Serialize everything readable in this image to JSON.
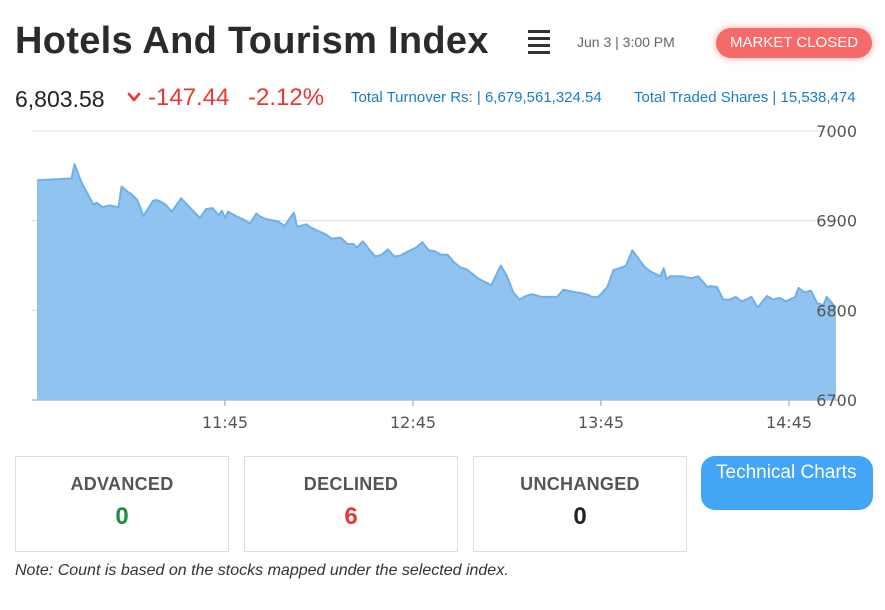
{
  "header": {
    "title": "Hotels And Tourism Index",
    "datetime": "Jun 3 | 3:00 PM",
    "market_status": "MARKET CLOSED"
  },
  "stats": {
    "index_value": "6,803.58",
    "change": "-147.44",
    "change_pct": "-2.12%",
    "turnover": "Total Turnover Rs: | 6,679,561,324.54",
    "traded_shares": "Total Traded Shares | 15,538,474"
  },
  "colors": {
    "area_fill": "#90c3ef",
    "line": "#6fb0e6",
    "down": "#e53935",
    "up": "#1e8e3e",
    "link": "#1a7dc4",
    "badge": "#f76a6a",
    "button": "#42a5f5"
  },
  "icons": {
    "menu": "hamburger-menu-icon",
    "change_direction": "chevron-down-icon"
  },
  "chart_data": {
    "type": "area",
    "x_ticks": [
      "11:45",
      "12:45",
      "13:45",
      "14:45"
    ],
    "y_ticks": [
      "7000",
      "6900",
      "6800",
      "6700"
    ],
    "ylim": [
      6700,
      7000
    ],
    "x_range_minutes": [
      645,
      900
    ],
    "y_axis_position": "right",
    "grid": true,
    "x": [
      645,
      656,
      657,
      659,
      663,
      664,
      666,
      668,
      671,
      672,
      674,
      675,
      677,
      679,
      682,
      683,
      684,
      686,
      688,
      691,
      697,
      699,
      701,
      703,
      704,
      705,
      706,
      708,
      711,
      713,
      715,
      716,
      718,
      722,
      724,
      727,
      728,
      731,
      732,
      735,
      737,
      739,
      742,
      744,
      746,
      747,
      749,
      751,
      753,
      755,
      757,
      759,
      761,
      763,
      766,
      768,
      770,
      772,
      774,
      776,
      778,
      780,
      782,
      786,
      790,
      793,
      795,
      797,
      799,
      801,
      803,
      806,
      809,
      811,
      813,
      817,
      819,
      821,
      822,
      824,
      825,
      827,
      829,
      831,
      833,
      835,
      839,
      841,
      844,
      845,
      846,
      847,
      851,
      852,
      854,
      856,
      859,
      860,
      862,
      864,
      866,
      868,
      870,
      873,
      875,
      877,
      878,
      880,
      882,
      884,
      887,
      888,
      890,
      892,
      894,
      896,
      897,
      900
    ],
    "y": [
      6945,
      6947,
      6963,
      6944,
      6918,
      6920,
      6915,
      6917,
      6915,
      6938,
      6932,
      6930,
      6923,
      6905,
      6922,
      6923,
      6922,
      6918,
      6910,
      6925,
      6903,
      6913,
      6914,
      6906,
      6911,
      6903,
      6910,
      6906,
      6901,
      6897,
      6908,
      6905,
      6902,
      6899,
      6894,
      6909,
      6893,
      6896,
      6893,
      6888,
      6885,
      6880,
      6881,
      6874,
      6874,
      6870,
      6877,
      6868,
      6860,
      6862,
      6868,
      6860,
      6861,
      6865,
      6870,
      6876,
      6867,
      6866,
      6862,
      6862,
      6854,
      6848,
      6846,
      6835,
      6828,
      6850,
      6838,
      6820,
      6812,
      6816,
      6818,
      6815,
      6815,
      6815,
      6823,
      6820,
      6819,
      6817,
      6815,
      6815,
      6818,
      6826,
      6845,
      6847,
      6850,
      6867,
      6848,
      6843,
      6838,
      6847,
      6834,
      6838,
      6838,
      6837,
      6836,
      6838,
      6826,
      6827,
      6826,
      6812,
      6812,
      6815,
      6810,
      6815,
      6803,
      6812,
      6816,
      6812,
      6814,
      6810,
      6815,
      6825,
      6820,
      6822,
      6808,
      6806,
      6815,
      6803
    ]
  },
  "counts": {
    "advanced_label": "ADVANCED",
    "advanced_value": "0",
    "declined_label": "DECLINED",
    "declined_value": "6",
    "unchanged_label": "UNCHANGED",
    "unchanged_value": "0"
  },
  "buttons": {
    "technical_charts": "Technical Charts"
  },
  "note": "Note: Count is based on the stocks mapped under the selected index."
}
